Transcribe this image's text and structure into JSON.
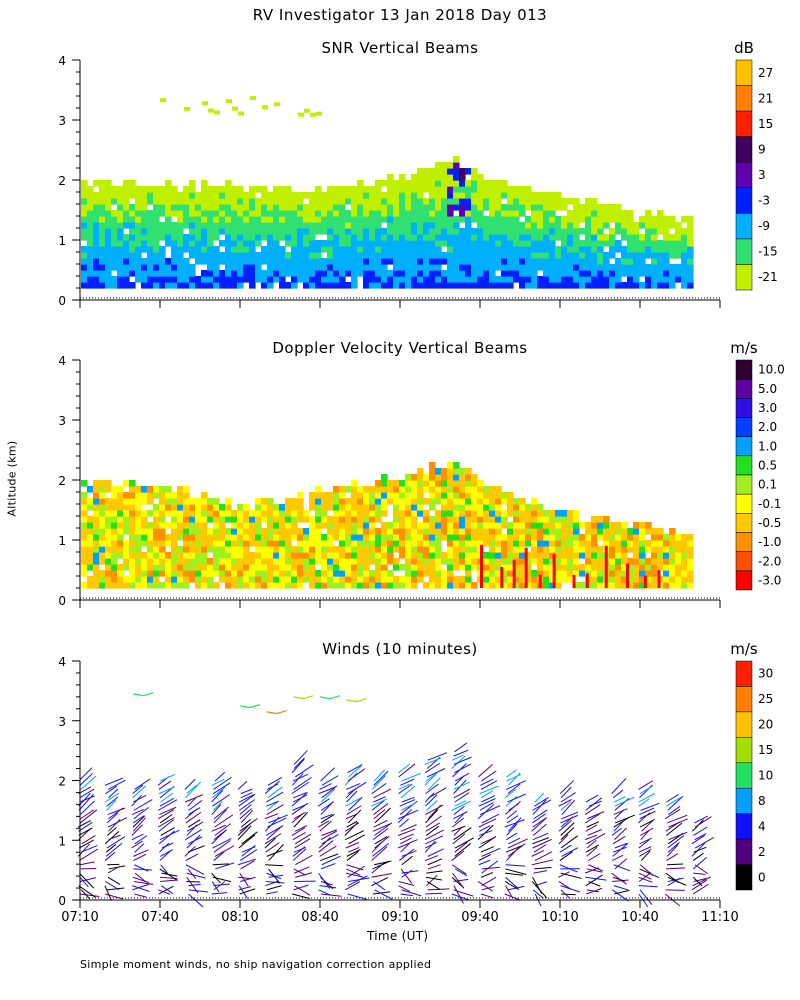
{
  "figure": {
    "title": "RV Investigator  13 Jan 2018 Day 013",
    "ylabel": "Altitude (km)",
    "xlabel": "Time (UT)",
    "footnote": "Simple moment winds, no ship navigation correction applied"
  },
  "chart_data": [
    {
      "type": "heatmap",
      "title": "SNR Vertical Beams",
      "xlabel": "",
      "ylabel": "Altitude (km)",
      "x_range_hours_ut": [
        7.1667,
        11.1667
      ],
      "data_x_range_hours_ut": [
        7.1667,
        10.9833
      ],
      "ylim": [
        0,
        4
      ],
      "yticks": [
        "0",
        "1",
        "2",
        "3",
        "4"
      ],
      "colorbar": {
        "unit": "dB",
        "labels": [
          "27",
          "21",
          "15",
          "9",
          "3",
          "-3",
          "-9",
          "-15",
          "-21"
        ],
        "colors": [
          "#ffc000",
          "#ff8000",
          "#ff2000",
          "#400060",
          "#6000b0",
          "#0020ff",
          "#00b0ff",
          "#30e070",
          "#c0f000"
        ]
      },
      "echo_top_km": [
        {
          "time": "07:10",
          "top": 1.9
        },
        {
          "time": "07:40",
          "top": 1.9
        },
        {
          "time": "08:10",
          "top": 1.85
        },
        {
          "time": "08:40",
          "top": 1.8
        },
        {
          "time": "09:10",
          "top": 2.0
        },
        {
          "time": "09:30",
          "top": 2.3
        },
        {
          "time": "09:40",
          "top": 2.0
        },
        {
          "time": "10:10",
          "top": 1.7
        },
        {
          "time": "10:40",
          "top": 1.4
        },
        {
          "time": "10:59",
          "top": 1.3
        }
      ],
      "elevated_layer_km": [
        3.1,
        3.4
      ]
    },
    {
      "type": "heatmap",
      "title": "Doppler Velocity Vertical Beams",
      "xlabel": "",
      "ylabel": "Altitude (km)",
      "x_range_hours_ut": [
        7.1667,
        11.1667
      ],
      "ylim": [
        0,
        4
      ],
      "yticks": [
        "0",
        "1",
        "2",
        "3",
        "4"
      ],
      "colorbar": {
        "unit": "m/s",
        "labels": [
          "10.0",
          "5.0",
          "3.0",
          "2.0",
          "1.0",
          "0.5",
          "0.1",
          "-0.1",
          "-0.5",
          "-1.0",
          "-2.0",
          "-3.0"
        ],
        "colors": [
          "#300030",
          "#6000a0",
          "#3010e0",
          "#0040ff",
          "#00a0ff",
          "#20e020",
          "#a0f020",
          "#ffff00",
          "#ffc800",
          "#ff9000",
          "#ff5000",
          "#ff0000"
        ]
      },
      "echo_top_km": [
        {
          "time": "07:10",
          "top": 1.9
        },
        {
          "time": "07:40",
          "top": 1.85
        },
        {
          "time": "08:10",
          "top": 1.5
        },
        {
          "time": "08:40",
          "top": 1.8
        },
        {
          "time": "09:10",
          "top": 2.0
        },
        {
          "time": "09:30",
          "top": 2.3
        },
        {
          "time": "09:40",
          "top": 1.9
        },
        {
          "time": "10:10",
          "top": 1.4
        },
        {
          "time": "10:40",
          "top": 1.2
        },
        {
          "time": "10:59",
          "top": 1.0
        }
      ]
    },
    {
      "type": "scatter",
      "title": "Winds (10 minutes)",
      "xlabel": "Time (UT)",
      "ylabel": "Altitude (km)",
      "x_range_hours_ut": [
        7.1667,
        11.1667
      ],
      "ylim": [
        0,
        4
      ],
      "yticks": [
        "0",
        "1",
        "2",
        "3",
        "4"
      ],
      "xticks": [
        "07:10",
        "07:40",
        "08:10",
        "08:40",
        "09:10",
        "09:40",
        "10:10",
        "10:40",
        "11:10"
      ],
      "colorbar": {
        "unit": "m/s",
        "labels": [
          "30",
          "25",
          "20",
          "15",
          "10",
          "8",
          "4",
          "2",
          "0"
        ],
        "colors": [
          "#ff2000",
          "#ff8000",
          "#ffc000",
          "#a0e000",
          "#20e060",
          "#00a0ff",
          "#1010ff",
          "#500080",
          "#000000"
        ]
      },
      "profile_top_km": [
        {
          "time": "07:10",
          "top": 2.0
        },
        {
          "time": "07:20",
          "top": 1.95
        },
        {
          "time": "07:30",
          "top": 1.9
        },
        {
          "time": "07:40",
          "top": 2.0
        },
        {
          "time": "07:50",
          "top": 1.9
        },
        {
          "time": "08:00",
          "top": 2.0
        },
        {
          "time": "08:10",
          "top": 1.9
        },
        {
          "time": "08:20",
          "top": 1.95
        },
        {
          "time": "08:30",
          "top": 2.3
        },
        {
          "time": "08:40",
          "top": 2.0
        },
        {
          "time": "08:50",
          "top": 2.2
        },
        {
          "time": "09:00",
          "top": 2.0
        },
        {
          "time": "09:10",
          "top": 2.2
        },
        {
          "time": "09:20",
          "top": 2.4
        },
        {
          "time": "09:30",
          "top": 2.5
        },
        {
          "time": "09:40",
          "top": 2.1
        },
        {
          "time": "09:50",
          "top": 2.1
        },
        {
          "time": "10:00",
          "top": 1.7
        },
        {
          "time": "10:10",
          "top": 1.8
        },
        {
          "time": "10:20",
          "top": 1.7
        },
        {
          "time": "10:30",
          "top": 1.8
        },
        {
          "time": "10:40",
          "top": 1.9
        },
        {
          "time": "10:50",
          "top": 1.7
        },
        {
          "time": "11:00",
          "top": 1.3
        }
      ],
      "upper_level_winds": [
        {
          "time": "07:30",
          "alt": 3.45,
          "speed": 10
        },
        {
          "time": "08:10",
          "alt": 3.25,
          "speed": 14
        },
        {
          "time": "08:20",
          "alt": 3.15,
          "speed": 27
        },
        {
          "time": "08:30",
          "alt": 3.4,
          "speed": 16
        },
        {
          "time": "08:40",
          "alt": 3.4,
          "speed": 14
        },
        {
          "time": "08:50",
          "alt": 3.35,
          "speed": 15
        }
      ]
    }
  ]
}
